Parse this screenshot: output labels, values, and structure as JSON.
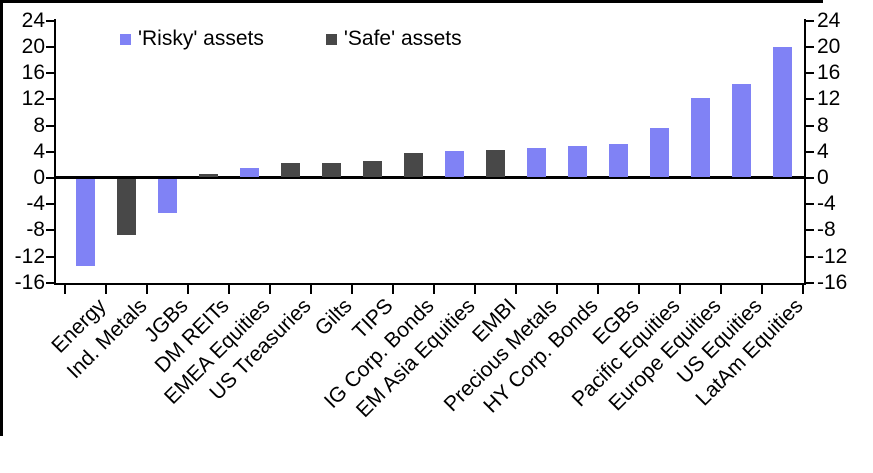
{
  "chart_data": {
    "type": "bar",
    "title": "",
    "xlabel": "",
    "ylabel": "",
    "ylim": [
      -16,
      24
    ],
    "y_ticks": [
      24,
      20,
      16,
      12,
      8,
      4,
      0,
      -4,
      -8,
      -12,
      -16
    ],
    "grid": false,
    "legend_position": "top",
    "legend": [
      {
        "id": "risky",
        "label": "'Risky' assets",
        "color": "#8082f5"
      },
      {
        "id": "safe",
        "label": "'Safe' assets",
        "color": "#484848"
      }
    ],
    "categories": [
      "Energy",
      "Ind. Metals",
      "JGBs",
      "DM REITs",
      "EMEA Equities",
      "US Treasuries",
      "Gilts",
      "TIPS",
      "IG Corp. Bonds",
      "EM Asia Equities",
      "EMBI",
      "Precious Metals",
      "HY Corp. Bonds",
      "EGBs",
      "Pacific Equities",
      "Europe Equities",
      "US Equities",
      "LatAm Equities"
    ],
    "bars": [
      {
        "label": "Energy",
        "value": -13.4,
        "series": "risky"
      },
      {
        "label": "Ind. Metals",
        "value": -8.7,
        "series": "safe"
      },
      {
        "label": "JGBs",
        "value": -5.3,
        "series": "risky"
      },
      {
        "label": "DM REITs",
        "value": 0.4,
        "series": "safe"
      },
      {
        "label": "EMEA Equities",
        "value": 1.4,
        "series": "risky"
      },
      {
        "label": "US Treasuries",
        "value": 2.1,
        "series": "safe"
      },
      {
        "label": "Gilts",
        "value": 2.1,
        "series": "safe"
      },
      {
        "label": "TIPS",
        "value": 2.4,
        "series": "safe"
      },
      {
        "label": "IG Corp. Bonds",
        "value": 3.7,
        "series": "safe"
      },
      {
        "label": "EM Asia Equities",
        "value": 3.9,
        "series": "risky"
      },
      {
        "label": "EMBI",
        "value": 4.1,
        "series": "safe"
      },
      {
        "label": "Precious Metals",
        "value": 4.4,
        "series": "risky"
      },
      {
        "label": "HY Corp. Bonds",
        "value": 4.7,
        "series": "risky"
      },
      {
        "label": "EGBs",
        "value": 5.0,
        "series": "risky"
      },
      {
        "label": "Pacific Equities",
        "value": 7.5,
        "series": "risky"
      },
      {
        "label": "Europe Equities",
        "value": 12.1,
        "series": "risky"
      },
      {
        "label": "US Equities",
        "value": 14.2,
        "series": "risky"
      },
      {
        "label": "LatAm Equities",
        "value": 19.8,
        "series": "risky"
      }
    ],
    "colors": {
      "axis": "#000000",
      "background": "#ffffff"
    }
  }
}
